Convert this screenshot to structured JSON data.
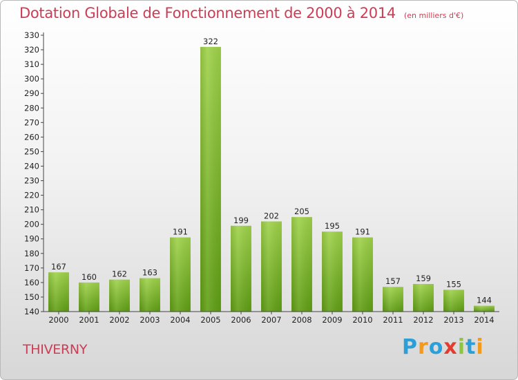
{
  "title": "Dotation Globale de Fonctionnement de 2000 à 2014",
  "subtitle": "(en milliers d'€)",
  "place": "THIVERNY",
  "logo": {
    "letters": [
      "P",
      "r",
      "o",
      "x",
      "i",
      "t",
      "i"
    ],
    "colors": [
      "#2b9fd8",
      "#f29a1f",
      "#2b9fd8",
      "#e23c2f",
      "#8cc63e",
      "#2b9fd8",
      "#f29a1f"
    ]
  },
  "colors": {
    "bar": "#7fbf2a",
    "title": "#cc3d55"
  },
  "chart_data": {
    "type": "bar",
    "title": "Dotation Globale de Fonctionnement de 2000 à 2014",
    "subtitle": "(en milliers d'€)",
    "xlabel": "",
    "ylabel": "",
    "categories": [
      "2000",
      "2001",
      "2002",
      "2003",
      "2004",
      "2005",
      "2006",
      "2007",
      "2008",
      "2009",
      "2010",
      "2011",
      "2012",
      "2013",
      "2014"
    ],
    "values": [
      167,
      160,
      162,
      163,
      191,
      322,
      199,
      202,
      205,
      195,
      191,
      157,
      159,
      155,
      144
    ],
    "ylim": [
      140,
      330
    ],
    "ytick_step": 10,
    "grid": false
  }
}
